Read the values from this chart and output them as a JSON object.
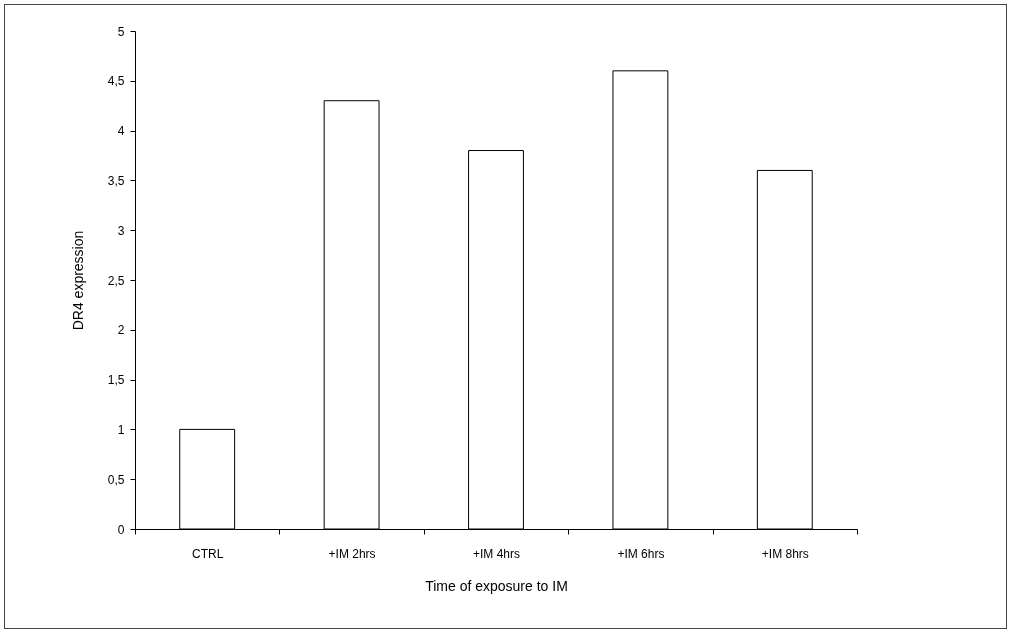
{
  "chart_data": {
    "type": "bar",
    "xlabel": "Time of exposure to IM",
    "ylabel": "DR4 expression",
    "categories": [
      "CTRL",
      "+IM  2hrs",
      "+IM  4hrs",
      "+IM  6hrs",
      "+IM  8hrs"
    ],
    "values": [
      1.0,
      4.3,
      3.8,
      4.6,
      3.6
    ],
    "color": "#ffffff",
    "ylim": [
      0,
      5
    ],
    "yticks": [
      0,
      {
        "value": 0.5,
        "label": "0,5"
      },
      1,
      {
        "value": 1.5,
        "label": "1,5"
      },
      2,
      {
        "value": 2.5,
        "label": "2,5"
      },
      3,
      {
        "value": 3.5,
        "label": "3,5"
      },
      4,
      {
        "value": 4.5,
        "label": "4,5"
      },
      5
    ],
    "grid": false
  }
}
